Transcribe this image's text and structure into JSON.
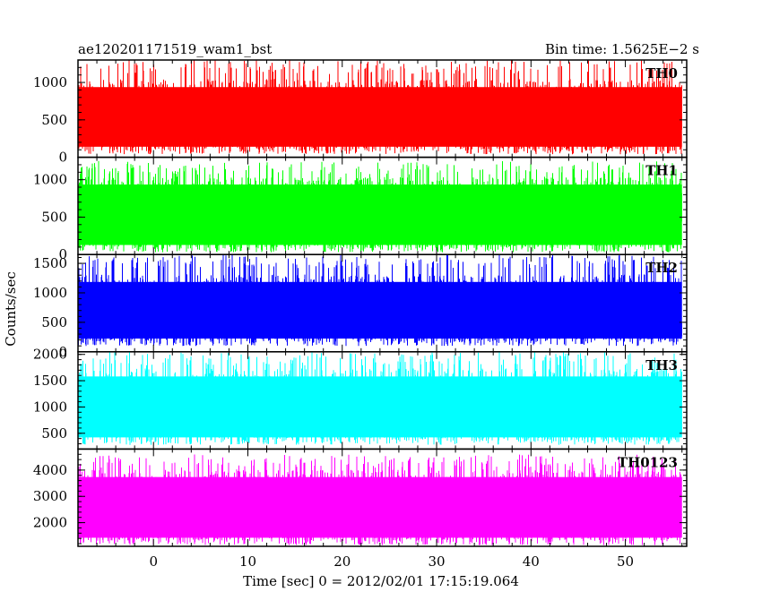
{
  "chart_data": {
    "type": "line",
    "title": "ae120201171519_wam1_bst",
    "subtitle": "Bin time: 1.5625E−2 s",
    "xlabel": "Time [sec] 0 = 2012/02/01 17:15:19.064",
    "ylabel": "Counts/sec",
    "xlim": [
      -8,
      56.5
    ],
    "x_range": [
      -8,
      56
    ],
    "bin_time": 0.015625,
    "x_ticks": [
      0,
      10,
      20,
      30,
      40,
      50
    ],
    "grid": false,
    "series": [
      {
        "name": "TH0",
        "color": "#ff0000",
        "ylim": [
          0,
          1300
        ],
        "y_ticks": [
          0,
          500,
          1000
        ],
        "mean": 560,
        "noise_min": 40,
        "noise_max": 1300
      },
      {
        "name": "TH1",
        "color": "#00ff00",
        "ylim": [
          0,
          1300
        ],
        "y_ticks": [
          0,
          500,
          1000
        ],
        "mean": 570,
        "noise_min": 30,
        "noise_max": 1250
      },
      {
        "name": "TH2",
        "color": "#0000ff",
        "ylim": [
          0,
          1650
        ],
        "y_ticks": [
          0,
          500,
          1000,
          1500
        ],
        "mean": 720,
        "noise_min": 100,
        "noise_max": 1650
      },
      {
        "name": "TH3",
        "color": "#00ffff",
        "ylim": [
          200,
          2050
        ],
        "y_ticks": [
          500,
          1000,
          1500,
          2000
        ],
        "mean": 1050,
        "noise_min": 280,
        "noise_max": 2050
      },
      {
        "name": "TH0123",
        "color": "#ff00ff",
        "ylim": [
          1100,
          4800
        ],
        "y_ticks": [
          2000,
          3000,
          4000
        ],
        "mean": 2700,
        "noise_min": 1150,
        "noise_max": 4600
      }
    ]
  }
}
